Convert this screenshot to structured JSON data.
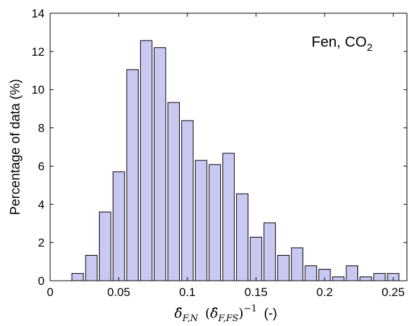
{
  "chart_data": {
    "type": "bar",
    "title": "",
    "ylabel": "Percentage of data (%)",
    "xlabel_parts": {
      "lhs": "δ̂",
      "lhs_sub": "F,N",
      "open": "(",
      "rhs": "δ̂",
      "rhs_sub": "F,FS",
      "close": ")",
      "exp": "−1",
      "unit": "(-)"
    },
    "annotation": {
      "text": "Fen, CO",
      "sub": "2"
    },
    "xlim": [
      0,
      0.26
    ],
    "ylim": [
      0,
      14
    ],
    "x_ticks": [
      0,
      0.05,
      0.1,
      0.15,
      0.2,
      0.25
    ],
    "x_tick_labels": [
      "0",
      "0.05",
      "0.1",
      "0.15",
      "0.2",
      "0.25"
    ],
    "y_ticks": [
      0,
      2,
      4,
      6,
      8,
      10,
      12,
      14
    ],
    "y_tick_labels": [
      "0",
      "2",
      "4",
      "6",
      "8",
      "10",
      "12",
      "14"
    ],
    "bin_width": 0.01,
    "bin_centers": [
      0.02,
      0.03,
      0.04,
      0.05,
      0.06,
      0.07,
      0.08,
      0.09,
      0.1,
      0.11,
      0.12,
      0.13,
      0.14,
      0.15,
      0.16,
      0.17,
      0.18,
      0.19,
      0.2,
      0.21,
      0.22,
      0.23,
      0.24,
      0.25
    ],
    "values": [
      0.38,
      1.33,
      3.6,
      5.7,
      11.05,
      12.57,
      12.2,
      9.33,
      8.38,
      6.3,
      6.08,
      6.67,
      4.55,
      2.28,
      3.03,
      1.33,
      1.72,
      0.78,
      0.6,
      0.2,
      0.78,
      0.2,
      0.38,
      0.38
    ],
    "bar_color": "#c8c8f2",
    "edge_color": "#000000",
    "grid": false
  }
}
